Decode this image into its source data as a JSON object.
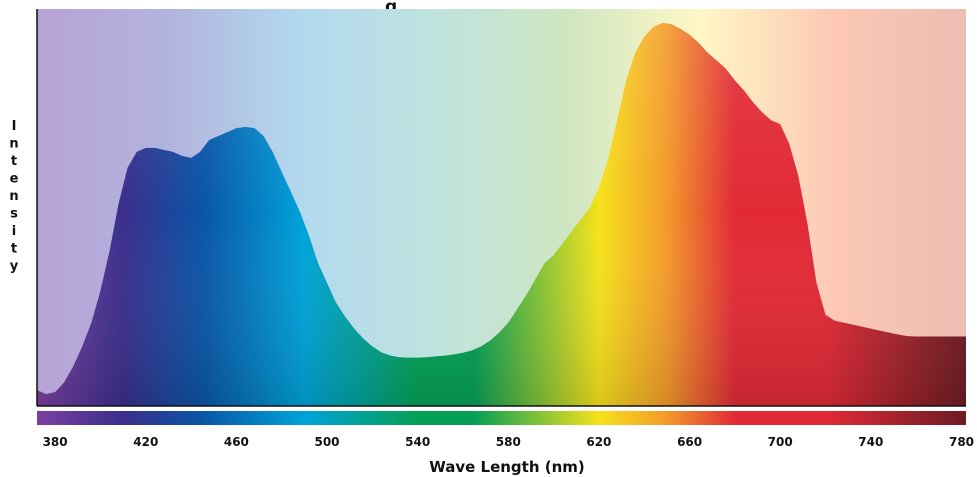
{
  "chart_data": {
    "type": "area",
    "title": "g",
    "xlabel": "Wave Length (nm)",
    "ylabel": "Intensity",
    "xlim": [
      372,
      782
    ],
    "ylim": [
      0,
      100
    ],
    "grid": false,
    "ticks": [
      380,
      420,
      460,
      500,
      540,
      580,
      620,
      660,
      700,
      740,
      780
    ],
    "series": [
      {
        "x": [
          372,
          376,
          380,
          384,
          388,
          392,
          396,
          400,
          404,
          408,
          412,
          416,
          420,
          424,
          428,
          432,
          436,
          440,
          444,
          448,
          452,
          456,
          460,
          464,
          468,
          472,
          476,
          480,
          484,
          488,
          492,
          496,
          500,
          504,
          508,
          512,
          516,
          520,
          524,
          528,
          532,
          536,
          540,
          544,
          548,
          552,
          556,
          560,
          564,
          568,
          572,
          576,
          580,
          584,
          588,
          592,
          596,
          600,
          604,
          608,
          612,
          616,
          620,
          624,
          628,
          632,
          636,
          640,
          644,
          648,
          652,
          656,
          660,
          664,
          668,
          672,
          676,
          680,
          684,
          688,
          692,
          696,
          700,
          704,
          708,
          712,
          716,
          720,
          724,
          728,
          732,
          736,
          740,
          744,
          748,
          752,
          756,
          760,
          764,
          768,
          772,
          776,
          780,
          782
        ],
        "y": [
          4,
          3,
          3.5,
          6,
          10,
          15,
          21,
          29,
          39,
          51,
          60,
          64,
          65,
          65,
          64.5,
          64,
          63,
          62.5,
          64,
          67,
          68,
          69,
          70,
          70.3,
          70,
          68,
          64,
          59,
          54,
          49,
          43,
          36,
          31,
          26,
          22.5,
          19.5,
          17,
          15,
          13.5,
          12.7,
          12.3,
          12.2,
          12.2,
          12.3,
          12.5,
          12.7,
          13,
          13.4,
          14,
          15,
          16.5,
          18.5,
          21,
          24.5,
          28,
          32,
          36,
          38,
          41,
          44,
          47,
          50,
          55,
          62,
          72,
          82,
          89,
          93,
          95.5,
          96.5,
          96.2,
          95,
          93.5,
          91.5,
          89,
          87,
          85,
          82,
          79.5,
          76.5,
          74,
          72,
          71,
          66,
          58,
          46,
          31,
          23,
          21.5,
          21,
          20.5,
          20,
          19.5,
          19,
          18.5,
          18,
          17.6,
          17.5,
          17.5,
          17.5,
          17.5,
          17.5,
          17.5,
          17.5
        ]
      }
    ],
    "background_bands": [
      "#b8a2d6",
      "#b2b4dd",
      "#b3d9ef",
      "#bfe3de",
      "#cfe6c1",
      "#fff7c6",
      "#fdc8b5",
      "#ecbdb1"
    ],
    "colors": {
      "violet": "#7b3fa0",
      "indigo": "#3a2e8c",
      "blue": "#0a55a6",
      "cyan": "#00a3d9",
      "green": "#05a056",
      "yellow": "#f6e21b",
      "orange": "#f39a2a",
      "red": "#e12a36",
      "darkred": "#6c1c23"
    }
  }
}
